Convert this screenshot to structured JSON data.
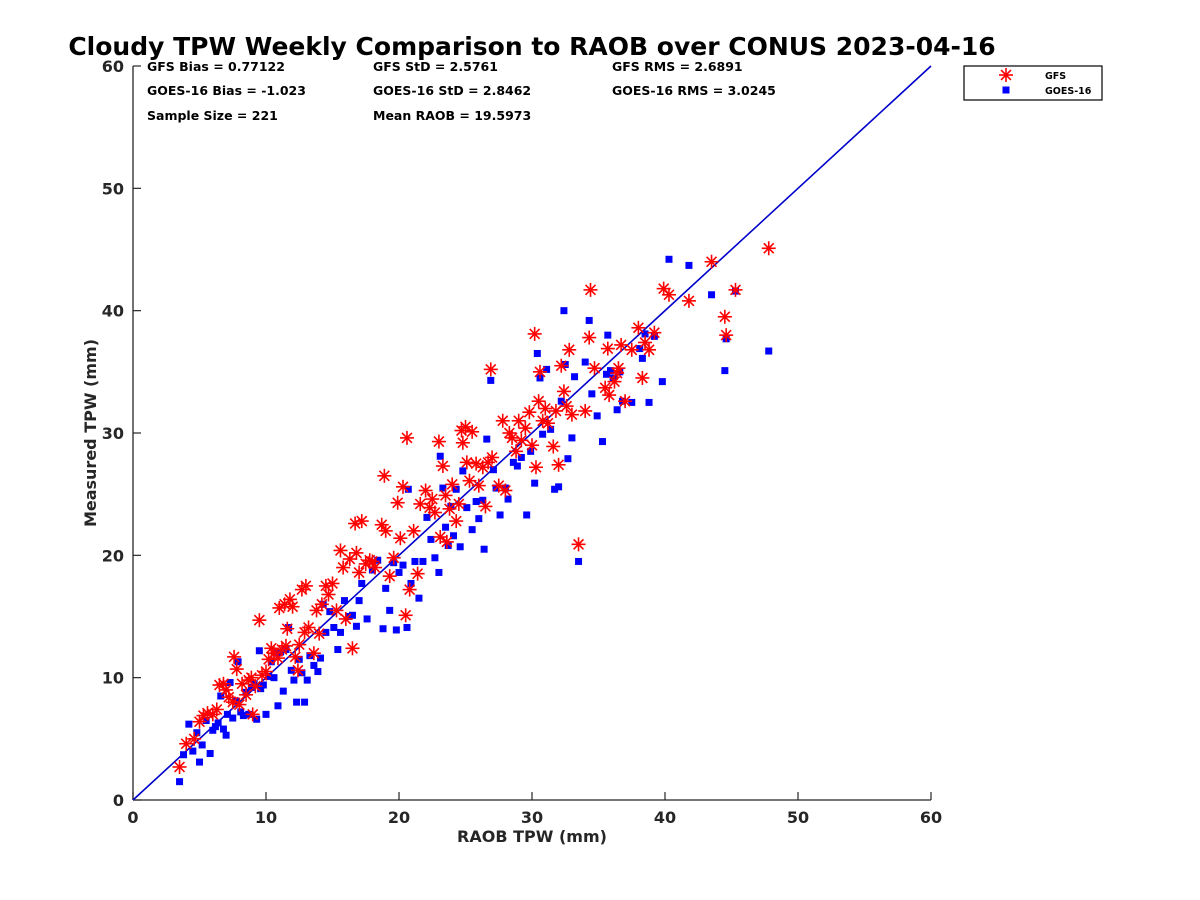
{
  "chart_data": {
    "type": "scatter",
    "title": "Cloudy TPW Weekly Comparison to RAOB over CONUS 2023-04-16",
    "xlabel": "RAOB TPW (mm)",
    "ylabel": "Measured TPW (mm)",
    "xlim": [
      0,
      60
    ],
    "ylim": [
      0,
      60
    ],
    "xticks": [
      "0",
      "10",
      "20",
      "30",
      "40",
      "50",
      "60"
    ],
    "yticks": [
      "0",
      "10",
      "20",
      "30",
      "40",
      "50",
      "60"
    ],
    "grid": false,
    "legend_position": "outside top-right",
    "reference_line": {
      "x": [
        0,
        60
      ],
      "y": [
        0,
        60
      ],
      "color": "#0000cc"
    },
    "stats": [
      [
        "GFS Bias = 0.77122",
        "GFS StD = 2.5761",
        "GFS RMS = 2.6891"
      ],
      [
        "GOES-16 Bias = -1.023",
        "GOES-16 StD = 2.8462",
        "GOES-16 RMS = 3.0245"
      ],
      [
        "Sample Size = 221",
        "Mean RAOB = 19.5973",
        ""
      ]
    ],
    "series": [
      {
        "name": "GFS",
        "marker": "asterisk",
        "color": "#ff0000",
        "points": [
          [
            3.5,
            2.7
          ],
          [
            4.0,
            4.6
          ],
          [
            4.6,
            5.0
          ],
          [
            5.0,
            6.4
          ],
          [
            5.3,
            6.9
          ],
          [
            5.6,
            7.1
          ],
          [
            6.0,
            7.0
          ],
          [
            6.3,
            7.4
          ],
          [
            6.5,
            9.4
          ],
          [
            6.8,
            9.5
          ],
          [
            7.0,
            9.0
          ],
          [
            7.2,
            8.4
          ],
          [
            7.5,
            8.0
          ],
          [
            7.6,
            11.7
          ],
          [
            7.8,
            10.7
          ],
          [
            8.0,
            7.8
          ],
          [
            8.2,
            9.5
          ],
          [
            8.5,
            8.6
          ],
          [
            8.7,
            9.8
          ],
          [
            8.9,
            10.0
          ],
          [
            9.0,
            7.0
          ],
          [
            9.2,
            9.3
          ],
          [
            9.5,
            14.7
          ],
          [
            9.7,
            10.2
          ],
          [
            10.0,
            10.5
          ],
          [
            10.2,
            11.5
          ],
          [
            10.4,
            12.4
          ],
          [
            10.6,
            12.0
          ],
          [
            10.9,
            11.6
          ],
          [
            11.0,
            15.7
          ],
          [
            11.2,
            12.3
          ],
          [
            11.4,
            16.0
          ],
          [
            11.5,
            12.6
          ],
          [
            11.6,
            14.0
          ],
          [
            11.8,
            16.4
          ],
          [
            12.0,
            15.8
          ],
          [
            12.2,
            11.7
          ],
          [
            12.4,
            10.6
          ],
          [
            12.5,
            12.7
          ],
          [
            12.7,
            17.2
          ],
          [
            12.9,
            13.7
          ],
          [
            13.0,
            17.5
          ],
          [
            13.2,
            14.1
          ],
          [
            13.6,
            12.0
          ],
          [
            13.8,
            15.5
          ],
          [
            14.0,
            13.6
          ],
          [
            14.2,
            16.0
          ],
          [
            14.5,
            17.5
          ],
          [
            14.7,
            16.8
          ],
          [
            15.0,
            17.7
          ],
          [
            15.3,
            15.5
          ],
          [
            15.6,
            20.4
          ],
          [
            15.8,
            19.0
          ],
          [
            16.0,
            14.8
          ],
          [
            16.3,
            19.7
          ],
          [
            16.5,
            12.4
          ],
          [
            16.7,
            22.6
          ],
          [
            16.8,
            20.2
          ],
          [
            17.0,
            18.6
          ],
          [
            17.2,
            22.8
          ],
          [
            17.5,
            19.3
          ],
          [
            17.8,
            19.6
          ],
          [
            18.0,
            19.5
          ],
          [
            18.2,
            19.0
          ],
          [
            18.7,
            22.5
          ],
          [
            18.9,
            26.5
          ],
          [
            19.0,
            22.0
          ],
          [
            19.3,
            18.3
          ],
          [
            19.6,
            19.8
          ],
          [
            19.9,
            24.3
          ],
          [
            20.1,
            21.4
          ],
          [
            20.3,
            25.6
          ],
          [
            20.5,
            15.1
          ],
          [
            20.6,
            29.6
          ],
          [
            20.8,
            17.2
          ],
          [
            21.1,
            22.0
          ],
          [
            21.4,
            18.5
          ],
          [
            21.6,
            24.2
          ],
          [
            22.0,
            25.3
          ],
          [
            22.3,
            23.9
          ],
          [
            22.5,
            24.6
          ],
          [
            22.7,
            23.5
          ],
          [
            23.0,
            29.3
          ],
          [
            23.1,
            21.5
          ],
          [
            23.3,
            27.3
          ],
          [
            23.5,
            24.9
          ],
          [
            23.6,
            21.1
          ],
          [
            23.8,
            23.8
          ],
          [
            24.0,
            25.8
          ],
          [
            24.3,
            22.8
          ],
          [
            24.5,
            24.2
          ],
          [
            24.7,
            30.2
          ],
          [
            24.8,
            29.2
          ],
          [
            25.0,
            30.5
          ],
          [
            25.1,
            27.6
          ],
          [
            25.3,
            26.1
          ],
          [
            25.5,
            30.1
          ],
          [
            25.8,
            27.5
          ],
          [
            26.0,
            25.7
          ],
          [
            26.3,
            27.2
          ],
          [
            26.5,
            24.0
          ],
          [
            26.7,
            27.6
          ],
          [
            26.9,
            35.2
          ],
          [
            27.0,
            28.0
          ],
          [
            27.5,
            25.7
          ],
          [
            27.8,
            31.0
          ],
          [
            28.0,
            25.3
          ],
          [
            28.3,
            30.0
          ],
          [
            28.5,
            29.6
          ],
          [
            28.8,
            28.5
          ],
          [
            29.0,
            31.0
          ],
          [
            29.2,
            29.4
          ],
          [
            29.5,
            30.4
          ],
          [
            29.8,
            31.7
          ],
          [
            30.0,
            29.0
          ],
          [
            30.2,
            38.1
          ],
          [
            30.3,
            27.2
          ],
          [
            30.5,
            32.6
          ],
          [
            30.6,
            35.0
          ],
          [
            30.8,
            31.0
          ],
          [
            31.0,
            32.0
          ],
          [
            31.2,
            30.8
          ],
          [
            31.6,
            28.9
          ],
          [
            31.8,
            31.8
          ],
          [
            32.0,
            27.4
          ],
          [
            32.2,
            35.5
          ],
          [
            32.4,
            33.4
          ],
          [
            32.6,
            32.2
          ],
          [
            32.8,
            36.8
          ],
          [
            33.0,
            31.5
          ],
          [
            33.5,
            20.9
          ],
          [
            34.0,
            31.8
          ],
          [
            34.3,
            37.8
          ],
          [
            34.4,
            41.7
          ],
          [
            34.7,
            35.3
          ],
          [
            35.5,
            33.7
          ],
          [
            35.7,
            36.9
          ],
          [
            35.8,
            33.1
          ],
          [
            36.2,
            34.2
          ],
          [
            36.4,
            34.9
          ],
          [
            36.5,
            35.3
          ],
          [
            36.7,
            37.2
          ],
          [
            37.0,
            32.6
          ],
          [
            37.5,
            36.8
          ],
          [
            38.0,
            38.6
          ],
          [
            38.3,
            34.5
          ],
          [
            38.5,
            37.4
          ],
          [
            38.8,
            36.8
          ],
          [
            39.2,
            38.2
          ],
          [
            39.9,
            41.8
          ],
          [
            40.3,
            41.3
          ],
          [
            41.8,
            40.8
          ],
          [
            43.5,
            44.0
          ],
          [
            44.5,
            39.5
          ],
          [
            44.6,
            38.0
          ],
          [
            45.3,
            41.7
          ],
          [
            47.8,
            45.1
          ]
        ]
      },
      {
        "name": "GOES-16",
        "marker": "square",
        "color": "#0000ff",
        "points": [
          [
            3.5,
            1.5
          ],
          [
            3.8,
            3.7
          ],
          [
            4.2,
            6.2
          ],
          [
            4.5,
            4.0
          ],
          [
            4.8,
            5.5
          ],
          [
            5.0,
            3.1
          ],
          [
            5.2,
            4.5
          ],
          [
            5.5,
            6.5
          ],
          [
            5.8,
            3.8
          ],
          [
            6.0,
            5.7
          ],
          [
            6.2,
            6.0
          ],
          [
            6.4,
            6.3
          ],
          [
            6.6,
            8.5
          ],
          [
            6.8,
            5.8
          ],
          [
            7.0,
            5.3
          ],
          [
            7.1,
            7.0
          ],
          [
            7.3,
            9.6
          ],
          [
            7.5,
            6.7
          ],
          [
            7.7,
            8.1
          ],
          [
            7.9,
            11.3
          ],
          [
            8.1,
            7.2
          ],
          [
            8.3,
            6.9
          ],
          [
            8.5,
            8.8
          ],
          [
            8.7,
            7.0
          ],
          [
            8.9,
            9.2
          ],
          [
            9.1,
            9.5
          ],
          [
            9.3,
            6.6
          ],
          [
            9.5,
            12.2
          ],
          [
            9.6,
            9.1
          ],
          [
            9.8,
            9.4
          ],
          [
            10.0,
            7.0
          ],
          [
            10.2,
            10.1
          ],
          [
            10.4,
            11.3
          ],
          [
            10.6,
            10.0
          ],
          [
            10.8,
            12.0
          ],
          [
            10.9,
            7.7
          ],
          [
            11.1,
            12.1
          ],
          [
            11.3,
            8.9
          ],
          [
            11.5,
            12.3
          ],
          [
            11.7,
            14.1
          ],
          [
            11.9,
            10.6
          ],
          [
            12.1,
            9.8
          ],
          [
            12.3,
            8.0
          ],
          [
            12.5,
            11.5
          ],
          [
            12.7,
            10.4
          ],
          [
            12.9,
            8.0
          ],
          [
            13.1,
            9.8
          ],
          [
            13.3,
            11.8
          ],
          [
            13.6,
            11.0
          ],
          [
            13.9,
            10.5
          ],
          [
            14.1,
            11.6
          ],
          [
            14.3,
            16.0
          ],
          [
            14.5,
            13.7
          ],
          [
            14.8,
            15.4
          ],
          [
            15.1,
            14.1
          ],
          [
            15.4,
            12.3
          ],
          [
            15.6,
            13.7
          ],
          [
            15.9,
            16.3
          ],
          [
            16.2,
            15.0
          ],
          [
            16.5,
            15.1
          ],
          [
            16.8,
            14.2
          ],
          [
            17.0,
            16.3
          ],
          [
            17.2,
            17.7
          ],
          [
            17.6,
            14.8
          ],
          [
            18.0,
            18.8
          ],
          [
            18.4,
            19.6
          ],
          [
            18.8,
            14.0
          ],
          [
            19.0,
            17.3
          ],
          [
            19.3,
            15.5
          ],
          [
            19.6,
            19.4
          ],
          [
            19.8,
            13.9
          ],
          [
            20.0,
            18.6
          ],
          [
            20.3,
            19.2
          ],
          [
            20.6,
            14.1
          ],
          [
            20.7,
            25.4
          ],
          [
            20.9,
            17.7
          ],
          [
            21.2,
            19.5
          ],
          [
            21.5,
            16.5
          ],
          [
            21.8,
            19.5
          ],
          [
            22.1,
            23.1
          ],
          [
            22.4,
            21.3
          ],
          [
            22.7,
            19.8
          ],
          [
            23.0,
            18.6
          ],
          [
            23.1,
            28.1
          ],
          [
            23.3,
            25.5
          ],
          [
            23.5,
            22.3
          ],
          [
            23.7,
            20.8
          ],
          [
            23.9,
            24.0
          ],
          [
            24.1,
            21.6
          ],
          [
            24.3,
            25.4
          ],
          [
            24.6,
            20.7
          ],
          [
            24.8,
            26.9
          ],
          [
            25.1,
            23.9
          ],
          [
            25.5,
            22.1
          ],
          [
            25.8,
            24.4
          ],
          [
            26.0,
            23.0
          ],
          [
            26.3,
            24.5
          ],
          [
            26.4,
            20.5
          ],
          [
            26.6,
            29.5
          ],
          [
            26.9,
            34.3
          ],
          [
            27.1,
            27.0
          ],
          [
            27.3,
            25.5
          ],
          [
            27.6,
            23.3
          ],
          [
            28.0,
            25.5
          ],
          [
            28.2,
            24.6
          ],
          [
            28.6,
            27.6
          ],
          [
            28.9,
            27.3
          ],
          [
            29.2,
            28.0
          ],
          [
            29.6,
            23.3
          ],
          [
            29.9,
            28.5
          ],
          [
            30.2,
            25.9
          ],
          [
            30.4,
            36.5
          ],
          [
            30.6,
            34.5
          ],
          [
            30.8,
            29.9
          ],
          [
            31.1,
            35.2
          ],
          [
            31.4,
            30.3
          ],
          [
            31.7,
            25.4
          ],
          [
            32.0,
            25.6
          ],
          [
            32.2,
            32.6
          ],
          [
            32.4,
            40.0
          ],
          [
            32.5,
            35.6
          ],
          [
            32.7,
            27.9
          ],
          [
            33.0,
            29.6
          ],
          [
            33.2,
            34.6
          ],
          [
            33.5,
            19.5
          ],
          [
            34.0,
            35.8
          ],
          [
            34.3,
            39.2
          ],
          [
            34.5,
            33.2
          ],
          [
            34.9,
            31.4
          ],
          [
            35.3,
            29.3
          ],
          [
            35.6,
            34.8
          ],
          [
            35.7,
            38.0
          ],
          [
            35.9,
            35.1
          ],
          [
            36.1,
            34.5
          ],
          [
            36.4,
            31.9
          ],
          [
            36.6,
            35.0
          ],
          [
            36.8,
            32.6
          ],
          [
            37.5,
            32.5
          ],
          [
            38.1,
            36.9
          ],
          [
            38.3,
            36.1
          ],
          [
            38.5,
            38.1
          ],
          [
            38.8,
            32.5
          ],
          [
            39.2,
            37.9
          ],
          [
            39.8,
            34.2
          ],
          [
            40.3,
            44.2
          ],
          [
            41.8,
            43.7
          ],
          [
            43.5,
            41.3
          ],
          [
            44.5,
            35.1
          ],
          [
            44.6,
            37.7
          ],
          [
            45.3,
            41.6
          ],
          [
            47.8,
            36.7
          ]
        ]
      }
    ]
  }
}
